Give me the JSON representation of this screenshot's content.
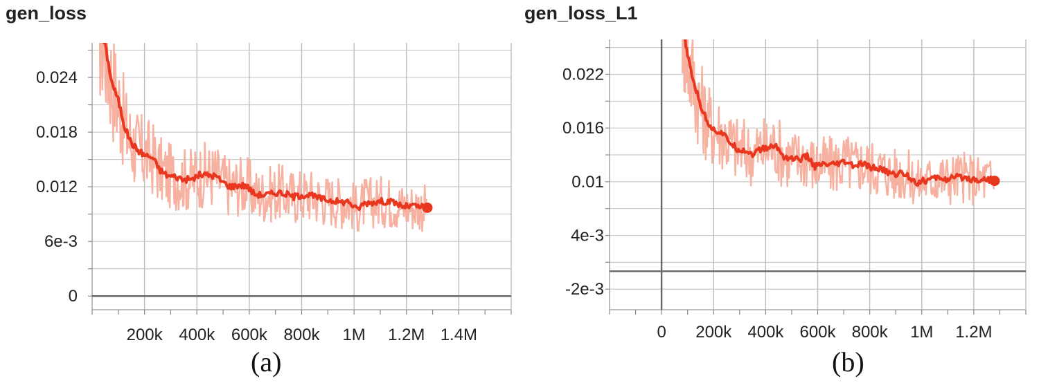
{
  "chart_data": [
    {
      "type": "line",
      "title": "gen_loss",
      "caption": "(a)",
      "xlim": [
        0,
        1600000
      ],
      "ylim": [
        -0.0015,
        0.0278
      ],
      "x_ticks": [
        {
          "v": 200000,
          "label": "200k"
        },
        {
          "v": 400000,
          "label": "400k"
        },
        {
          "v": 600000,
          "label": "600k"
        },
        {
          "v": 800000,
          "label": "800k"
        },
        {
          "v": 1000000,
          "label": "1M"
        },
        {
          "v": 1200000,
          "label": "1.2M"
        },
        {
          "v": 1400000,
          "label": "1.4M"
        }
      ],
      "y_ticks": [
        {
          "v": 0,
          "label": "0"
        },
        {
          "v": 0.006,
          "label": "6e-3"
        },
        {
          "v": 0.012,
          "label": "0.012"
        },
        {
          "v": 0.018,
          "label": "0.018"
        },
        {
          "v": 0.024,
          "label": "0.024"
        }
      ],
      "grid": true,
      "series": [
        {
          "color": "#e8361f",
          "raw_color": "#f7b1a0",
          "x": [
            25000,
            50000,
            75000,
            100000,
            125000,
            150000,
            175000,
            200000,
            230000,
            260000,
            290000,
            320000,
            350000,
            380000,
            410000,
            440000,
            470000,
            500000,
            530000,
            560000,
            590000,
            620000,
            650000,
            680000,
            710000,
            740000,
            770000,
            800000,
            830000,
            860000,
            890000,
            920000,
            950000,
            980000,
            1010000,
            1040000,
            1070000,
            1100000,
            1130000,
            1160000,
            1190000,
            1220000,
            1250000,
            1280000
          ],
          "y": [
            0.0295,
            0.0275,
            0.0235,
            0.0215,
            0.0185,
            0.0168,
            0.016,
            0.0155,
            0.0152,
            0.0138,
            0.0132,
            0.0131,
            0.0128,
            0.0128,
            0.0133,
            0.0133,
            0.0132,
            0.0125,
            0.012,
            0.0122,
            0.0121,
            0.0112,
            0.0111,
            0.0112,
            0.0114,
            0.0112,
            0.0109,
            0.0111,
            0.0111,
            0.0108,
            0.0106,
            0.0105,
            0.0103,
            0.0104,
            0.0095,
            0.0102,
            0.0103,
            0.0104,
            0.0104,
            0.0102,
            0.0098,
            0.0099,
            0.0098,
            0.0097
          ]
        }
      ]
    },
    {
      "type": "line",
      "title": "gen_loss_L1",
      "caption": "(b)",
      "xlim": [
        -200000,
        1400000
      ],
      "ylim": [
        -0.0043,
        0.0259
      ],
      "x_ticks": [
        {
          "v": 0,
          "label": "0"
        },
        {
          "v": 200000,
          "label": "200k"
        },
        {
          "v": 400000,
          "label": "400k"
        },
        {
          "v": 600000,
          "label": "600k"
        },
        {
          "v": 800000,
          "label": "800k"
        },
        {
          "v": 1000000,
          "label": "1M"
        },
        {
          "v": 1200000,
          "label": "1.2M"
        }
      ],
      "y_ticks": [
        {
          "v": -0.002,
          "label": "-2e-3"
        },
        {
          "v": 0.004,
          "label": "4e-3"
        },
        {
          "v": 0.01,
          "label": "0.01"
        },
        {
          "v": 0.016,
          "label": "0.016"
        },
        {
          "v": 0.022,
          "label": "0.022"
        }
      ],
      "grid": true,
      "series": [
        {
          "color": "#e8361f",
          "raw_color": "#f7b1a0",
          "x": [
            80000,
            100000,
            125000,
            150000,
            175000,
            200000,
            230000,
            260000,
            290000,
            320000,
            350000,
            380000,
            410000,
            440000,
            470000,
            500000,
            530000,
            560000,
            590000,
            620000,
            650000,
            680000,
            710000,
            740000,
            770000,
            800000,
            830000,
            860000,
            890000,
            920000,
            950000,
            980000,
            1010000,
            1040000,
            1070000,
            1100000,
            1130000,
            1160000,
            1190000,
            1220000,
            1250000,
            1280000
          ],
          "y": [
            0.028,
            0.024,
            0.021,
            0.0185,
            0.0168,
            0.0158,
            0.0155,
            0.0145,
            0.0137,
            0.0135,
            0.0131,
            0.0136,
            0.0138,
            0.014,
            0.0128,
            0.0126,
            0.0125,
            0.0128,
            0.0117,
            0.0119,
            0.0118,
            0.012,
            0.0122,
            0.0117,
            0.012,
            0.0116,
            0.0115,
            0.0112,
            0.0108,
            0.011,
            0.0106,
            0.0099,
            0.0101,
            0.0103,
            0.0105,
            0.0102,
            0.0105,
            0.0105,
            0.0103,
            0.0102,
            0.0103,
            0.0101
          ]
        }
      ]
    }
  ]
}
